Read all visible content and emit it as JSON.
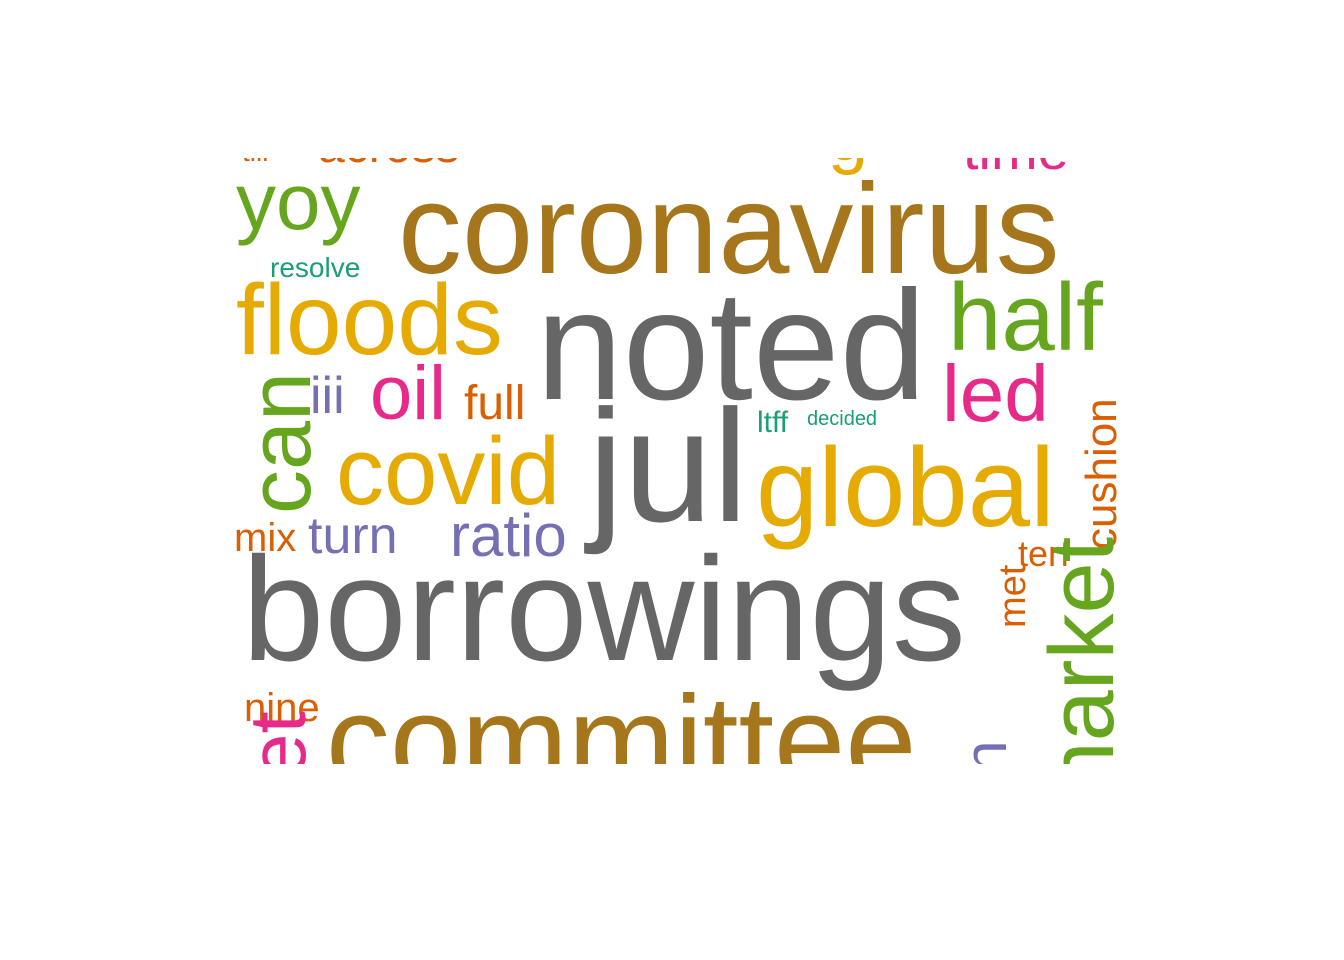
{
  "word_cloud": {
    "words": [
      {
        "text": "coronavirus",
        "color": "#A6761D"
      },
      {
        "text": "noted",
        "color": "#666666"
      },
      {
        "text": "jul",
        "color": "#666666"
      },
      {
        "text": "borrowings",
        "color": "#666666"
      },
      {
        "text": "committee",
        "color": "#A6761D"
      },
      {
        "text": "floods",
        "color": "#E6AB02"
      },
      {
        "text": "global",
        "color": "#E6AB02"
      },
      {
        "text": "covid",
        "color": "#E6AB02"
      },
      {
        "text": "half",
        "color": "#66A61E"
      },
      {
        "text": "yoy",
        "color": "#66A61E"
      },
      {
        "text": "led",
        "color": "#E7298A"
      },
      {
        "text": "oil",
        "color": "#E7298A"
      },
      {
        "text": "can",
        "color": "#66A61E"
      },
      {
        "text": "market",
        "color": "#66A61E"
      },
      {
        "text": "iii",
        "color": "#7570B3"
      },
      {
        "text": "full",
        "color": "#D95F02"
      },
      {
        "text": "turn",
        "color": "#7570B3"
      },
      {
        "text": "ratio",
        "color": "#7570B3"
      },
      {
        "text": "mix",
        "color": "#D95F02"
      },
      {
        "text": "resolve",
        "color": "#1B9E77"
      },
      {
        "text": "ltff",
        "color": "#1B9E77"
      },
      {
        "text": "decided",
        "color": "#1B9E77"
      },
      {
        "text": "cushion",
        "color": "#D95F02"
      },
      {
        "text": "terf",
        "color": "#D95F02"
      },
      {
        "text": "met",
        "color": "#D95F02"
      },
      {
        "text": "nine",
        "color": "#D95F02"
      },
      {
        "text": "across",
        "color": "#D95F02"
      },
      {
        "text": "time",
        "color": "#E7298A"
      },
      {
        "text": "g",
        "color": "#E6AB02"
      },
      {
        "text": "till",
        "color": "#D95F02"
      },
      {
        "text": "set",
        "color": "#E7298A"
      },
      {
        "text": "loan",
        "color": "#7570B3"
      }
    ]
  }
}
